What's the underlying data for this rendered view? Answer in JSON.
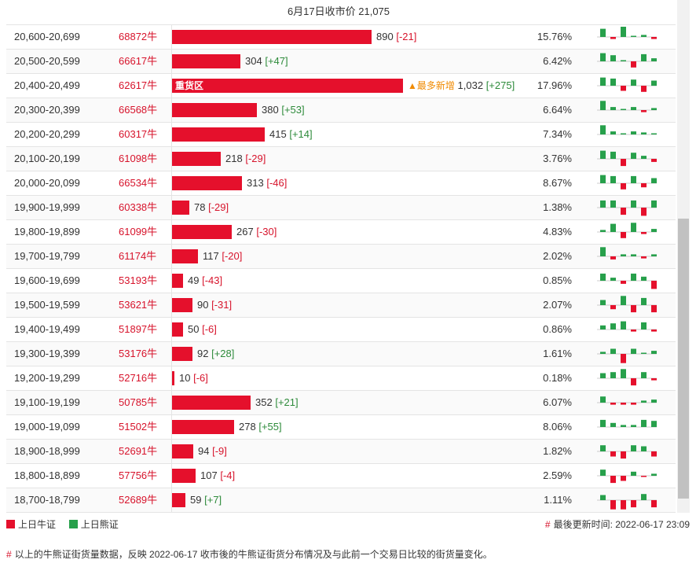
{
  "header": {
    "title": "6月17日收市价 21,075"
  },
  "colors": {
    "bull": "#e5102c",
    "bear": "#27a04b"
  },
  "max_value": 1032,
  "rows": [
    {
      "range": "20,600-20,699",
      "code": "68872牛",
      "value": 890,
      "value_text": "890",
      "change": "[-21]",
      "percent": "15.76%",
      "spark": [
        0.8,
        -0.2,
        1,
        0,
        0.2,
        -0.2
      ]
    },
    {
      "range": "20,500-20,599",
      "code": "66617牛",
      "value": 304,
      "value_text": "304",
      "change": "[+47]",
      "percent": "6.42%",
      "spark": [
        0.8,
        0.6,
        0,
        -0.6,
        0.7,
        0.3
      ]
    },
    {
      "range": "20,400-20,499",
      "code": "62617牛",
      "value": 1032,
      "value_text": "1,032",
      "change": "[+275]",
      "percent": "17.96%",
      "zone": "重货区",
      "tag": "▲最多新增",
      "spark": [
        0.8,
        0.7,
        -0.5,
        0.6,
        -0.6,
        0.5
      ]
    },
    {
      "range": "20,300-20,399",
      "code": "66568牛",
      "value": 380,
      "value_text": "380",
      "change": "[+53]",
      "percent": "6.64%",
      "spark": [
        0.9,
        0.3,
        0.1,
        0.3,
        -0.2,
        0.2
      ]
    },
    {
      "range": "20,200-20,299",
      "code": "60317牛",
      "value": 415,
      "value_text": "415",
      "change": "[+14]",
      "percent": "7.34%",
      "spark": [
        0.9,
        0.3,
        0.1,
        0.3,
        0.2,
        0.1
      ]
    },
    {
      "range": "20,100-20,199",
      "code": "61098牛",
      "value": 218,
      "value_text": "218",
      "change": "[-29]",
      "percent": "3.76%",
      "spark": [
        0.8,
        0.7,
        -0.7,
        0.6,
        0.3,
        -0.3
      ]
    },
    {
      "range": "20,000-20,099",
      "code": "66534牛",
      "value": 313,
      "value_text": "313",
      "change": "[-46]",
      "percent": "8.67%",
      "spark": [
        0.8,
        0.7,
        -0.6,
        0.7,
        -0.4,
        0.5
      ]
    },
    {
      "range": "19,900-19,999",
      "code": "60338牛",
      "value": 78,
      "value_text": "78",
      "change": "[-29]",
      "percent": "1.38%",
      "spark": [
        0.7,
        0.7,
        -0.7,
        0.7,
        -0.8,
        0.7
      ]
    },
    {
      "range": "19,800-19,899",
      "code": "61099牛",
      "value": 267,
      "value_text": "267",
      "change": "[-30]",
      "percent": "4.83%",
      "spark": [
        0.2,
        0.8,
        -0.6,
        0.9,
        -0.2,
        0.3
      ]
    },
    {
      "range": "19,700-19,799",
      "code": "61174牛",
      "value": 117,
      "value_text": "117",
      "change": "[-20]",
      "percent": "2.02%",
      "spark": [
        0.9,
        -0.3,
        0.2,
        0.2,
        -0.2,
        0.2
      ]
    },
    {
      "range": "19,600-19,699",
      "code": "53193牛",
      "value": 49,
      "value_text": "49",
      "change": "[-43]",
      "percent": "0.85%",
      "spark": [
        0.7,
        0.3,
        -0.3,
        0.7,
        0.4,
        -0.8
      ]
    },
    {
      "range": "19,500-19,599",
      "code": "53621牛",
      "value": 90,
      "value_text": "90",
      "change": "[-31]",
      "percent": "2.07%",
      "spark": [
        0.5,
        -0.4,
        0.9,
        -0.7,
        0.7,
        -0.7
      ]
    },
    {
      "range": "19,400-19,499",
      "code": "51897牛",
      "value": 50,
      "value_text": "50",
      "change": "[-6]",
      "percent": "0.86%",
      "spark": [
        0.4,
        0.6,
        0.8,
        -0.2,
        0.7,
        -0.2
      ]
    },
    {
      "range": "19,300-19,399",
      "code": "53176牛",
      "value": 92,
      "value_text": "92",
      "change": "[+28]",
      "percent": "1.61%",
      "spark": [
        0.2,
        0.5,
        -0.9,
        0.5,
        0.1,
        0.3
      ]
    },
    {
      "range": "19,200-19,299",
      "code": "52716牛",
      "value": 10,
      "value_text": "10",
      "change": "[-6]",
      "percent": "0.18%",
      "spark": [
        0.5,
        0.6,
        0.9,
        -0.7,
        0.6,
        -0.2
      ]
    },
    {
      "range": "19,100-19,199",
      "code": "50785牛",
      "value": 352,
      "value_text": "352",
      "change": "[+21]",
      "percent": "6.07%",
      "spark": [
        0.6,
        -0.2,
        -0.2,
        -0.2,
        0.2,
        0.3
      ]
    },
    {
      "range": "19,000-19,099",
      "code": "51502牛",
      "value": 278,
      "value_text": "278",
      "change": "[+55]",
      "percent": "8.06%",
      "spark": [
        0.7,
        0.4,
        0.2,
        0.2,
        0.7,
        0.6
      ]
    },
    {
      "range": "18,900-18,999",
      "code": "52691牛",
      "value": 94,
      "value_text": "94",
      "change": "[-9]",
      "percent": "1.82%",
      "spark": [
        0.6,
        -0.5,
        -0.7,
        0.6,
        0.5,
        -0.5
      ]
    },
    {
      "range": "18,800-18,899",
      "code": "57756牛",
      "value": 107,
      "value_text": "107",
      "change": "[-4]",
      "percent": "2.59%",
      "spark": [
        0.6,
        -0.7,
        -0.5,
        0.4,
        -0.1,
        0.2
      ]
    },
    {
      "range": "18,700-18,799",
      "code": "52689牛",
      "value": 59,
      "value_text": "59",
      "change": "[+7]",
      "percent": "1.11%",
      "spark": [
        0.5,
        -0.9,
        -0.9,
        -0.7,
        0.6,
        -0.7
      ]
    }
  ],
  "legend": {
    "bull_label": "上日牛证",
    "bear_label": "上日熊证"
  },
  "updated": {
    "hash": "#",
    "text": "最後更新时间: 2022-06-17 23:09"
  },
  "footer_note": {
    "hash": "#",
    "text": "以上的牛熊证街货量数据，反映 2022-06-17 收市後的牛熊证街货分布情况及与此前一个交易日比较的街货量变化。"
  }
}
